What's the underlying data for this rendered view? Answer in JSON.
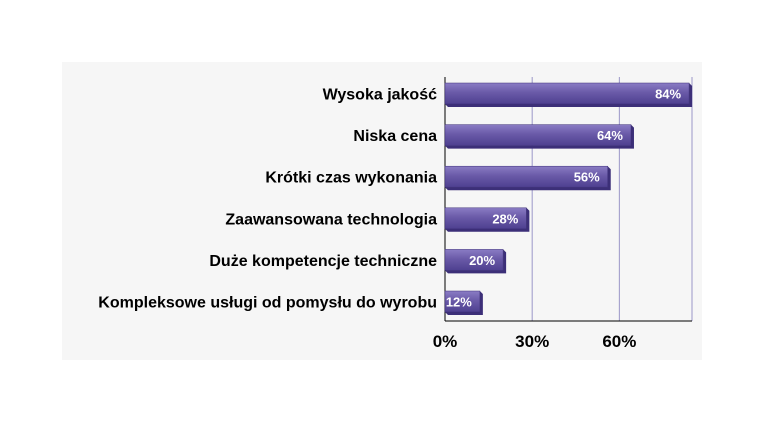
{
  "chart_data": {
    "type": "bar",
    "orientation": "horizontal",
    "categories": [
      "Wysoka jakość",
      "Niska cena",
      "Krótki czas wykonania",
      "Zaawansowana technologia",
      "Duże kompetencje techniczne",
      "Kompleksowe usługi od pomysłu do wyrobu"
    ],
    "values": [
      84,
      64,
      56,
      28,
      20,
      12
    ],
    "data_labels": [
      "84%",
      "64%",
      "56%",
      "28%",
      "20%",
      "12%"
    ],
    "x_ticks": [
      0,
      30,
      60
    ],
    "x_tick_labels": [
      "0%",
      "30%",
      "60%"
    ],
    "xlim": [
      0,
      85
    ],
    "grid": "vertical",
    "legend": "none",
    "colors": {
      "bar": "#6a5aa8",
      "bar_dark": "#3c2f78",
      "grid": "#9a96c8",
      "panel": "#f6f6f6"
    }
  }
}
